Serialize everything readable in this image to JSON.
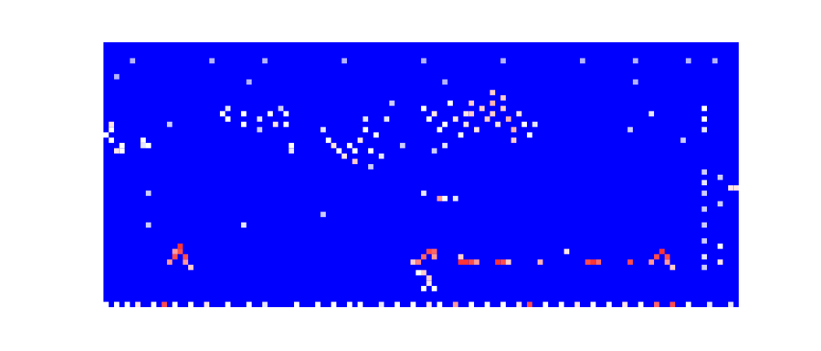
{
  "chart_data": {
    "type": "heatmap",
    "xlim": [
      0,
      120
    ],
    "ylim": [
      0,
      50
    ],
    "tick_labels": false,
    "grid": false,
    "colors": [
      "#0000ff",
      "#ffffff",
      "#ff0000"
    ],
    "color_range": [
      0,
      1
    ],
    "cells": [
      [
        0,
        32,
        0.5
      ],
      [
        1,
        34,
        0.55
      ],
      [
        1,
        33,
        0.5
      ],
      [
        1,
        31,
        0.5
      ],
      [
        2,
        29,
        0.55
      ],
      [
        3,
        30,
        0.5
      ],
      [
        3,
        29,
        0.5
      ],
      [
        7,
        31,
        0.5
      ],
      [
        7,
        30,
        0.45
      ],
      [
        8,
        30,
        0.5
      ],
      [
        12,
        34,
        0.4
      ],
      [
        22,
        36,
        0.5
      ],
      [
        23,
        37,
        0.45
      ],
      [
        23,
        35,
        0.5
      ],
      [
        26,
        36,
        0.5
      ],
      [
        26,
        34,
        0.5
      ],
      [
        29,
        35,
        0.45
      ],
      [
        29,
        33,
        0.4
      ],
      [
        31,
        36,
        0.5
      ],
      [
        32,
        34,
        0.55
      ],
      [
        33,
        37,
        0.4
      ],
      [
        34,
        36,
        0.5
      ],
      [
        34,
        34,
        0.5
      ],
      [
        35,
        30,
        0.5
      ],
      [
        35,
        29,
        0.45
      ],
      [
        41,
        33,
        0.45
      ],
      [
        42,
        31,
        0.5
      ],
      [
        43,
        30,
        0.55
      ],
      [
        44,
        29,
        0.5
      ],
      [
        45,
        28,
        0.55
      ],
      [
        46,
        30,
        0.5
      ],
      [
        47,
        27,
        0.6
      ],
      [
        47,
        29,
        0.5
      ],
      [
        48,
        31,
        0.55
      ],
      [
        49,
        33,
        0.5
      ],
      [
        49,
        35,
        0.45
      ],
      [
        50,
        29,
        0.5
      ],
      [
        50,
        26,
        0.4
      ],
      [
        51,
        32,
        0.5
      ],
      [
        52,
        28,
        0.45
      ],
      [
        53,
        35,
        0.45
      ],
      [
        54,
        38,
        0.4
      ],
      [
        56,
        30,
        0.4
      ],
      [
        60,
        37,
        0.5
      ],
      [
        61,
        35,
        0.5
      ],
      [
        62,
        36,
        0.55
      ],
      [
        63,
        33,
        0.5
      ],
      [
        64,
        34,
        0.5
      ],
      [
        65,
        38,
        0.5
      ],
      [
        66,
        35,
        0.55
      ],
      [
        67,
        32,
        0.5
      ],
      [
        68,
        36,
        0.55
      ],
      [
        68,
        34,
        0.55
      ],
      [
        69,
        38,
        0.6
      ],
      [
        69,
        36,
        0.6
      ],
      [
        70,
        33,
        0.55
      ],
      [
        71,
        37,
        0.6
      ],
      [
        72,
        35,
        0.6
      ],
      [
        73,
        40,
        0.6
      ],
      [
        73,
        38,
        0.65
      ],
      [
        73,
        36,
        0.6
      ],
      [
        74,
        34,
        0.55
      ],
      [
        75,
        39,
        0.6
      ],
      [
        75,
        37,
        0.6
      ],
      [
        76,
        35,
        0.65
      ],
      [
        77,
        33,
        0.65
      ],
      [
        77,
        31,
        0.6
      ],
      [
        78,
        36,
        0.55
      ],
      [
        79,
        34,
        0.5
      ],
      [
        80,
        32,
        0.5
      ],
      [
        81,
        34,
        0.45
      ],
      [
        64,
        30,
        0.45
      ],
      [
        62,
        29,
        0.4
      ],
      [
        99,
        33,
        0.4
      ],
      [
        103,
        36,
        0.45
      ],
      [
        109,
        31,
        0.4
      ],
      [
        113,
        37,
        0.5
      ],
      [
        113,
        35,
        0.5
      ],
      [
        113,
        33,
        0.45
      ],
      [
        113,
        25,
        0.4
      ],
      [
        113,
        23,
        0.45
      ],
      [
        113,
        21,
        0.4
      ],
      [
        113,
        18,
        0.4
      ],
      [
        113,
        15,
        0.4
      ],
      [
        113,
        12,
        0.4
      ],
      [
        113,
        9,
        0.45
      ],
      [
        113,
        7,
        0.4
      ],
      [
        116,
        24,
        0.4
      ],
      [
        116,
        19,
        0.4
      ],
      [
        116,
        11,
        0.5
      ],
      [
        116,
        8,
        0.55
      ],
      [
        118,
        22,
        0.55
      ],
      [
        119,
        22,
        0.55
      ],
      [
        8,
        21,
        0.4
      ],
      [
        60,
        21,
        0.45
      ],
      [
        63,
        20,
        0.7
      ],
      [
        64,
        20,
        0.5
      ],
      [
        66,
        20,
        0.45
      ],
      [
        8,
        15,
        0.4
      ],
      [
        26,
        15,
        0.45
      ],
      [
        41,
        17,
        0.4
      ],
      [
        5,
        46,
        0.35
      ],
      [
        20,
        46,
        0.35
      ],
      [
        30,
        46,
        0.35
      ],
      [
        45,
        46,
        0.35
      ],
      [
        60,
        46,
        0.35
      ],
      [
        75,
        46,
        0.35
      ],
      [
        90,
        46,
        0.35
      ],
      [
        100,
        46,
        0.35
      ],
      [
        110,
        46,
        0.35
      ],
      [
        115,
        46,
        0.35
      ],
      [
        2,
        43,
        0.35
      ],
      [
        27,
        42,
        0.35
      ],
      [
        64,
        42,
        0.35
      ],
      [
        100,
        42,
        0.35
      ],
      [
        12,
        8,
        0.7
      ],
      [
        13,
        9,
        0.85
      ],
      [
        13,
        10,
        0.7
      ],
      [
        14,
        11,
        0.9
      ],
      [
        14,
        10,
        0.85
      ],
      [
        15,
        9,
        0.85
      ],
      [
        15,
        8,
        0.7
      ],
      [
        16,
        7,
        0.6
      ],
      [
        58,
        8,
        0.6
      ],
      [
        59,
        8,
        0.75
      ],
      [
        60,
        9,
        0.8
      ],
      [
        61,
        10,
        0.85
      ],
      [
        62,
        10,
        0.8
      ],
      [
        62,
        9,
        0.7
      ],
      [
        60,
        6,
        0.6
      ],
      [
        61,
        5,
        0.6
      ],
      [
        61,
        4,
        0.55
      ],
      [
        60,
        3,
        0.5
      ],
      [
        62,
        3,
        0.5
      ],
      [
        59,
        6,
        0.5
      ],
      [
        67,
        8,
        0.9
      ],
      [
        68,
        8,
        0.9
      ],
      [
        69,
        8,
        0.85
      ],
      [
        67,
        9,
        0.6
      ],
      [
        70,
        8,
        0.7
      ],
      [
        74,
        8,
        0.9
      ],
      [
        75,
        8,
        0.85
      ],
      [
        76,
        8,
        0.6
      ],
      [
        82,
        8,
        0.65
      ],
      [
        87,
        10,
        0.55
      ],
      [
        91,
        8,
        0.85
      ],
      [
        92,
        8,
        0.9
      ],
      [
        93,
        8,
        0.8
      ],
      [
        99,
        8,
        0.85
      ],
      [
        103,
        8,
        0.7
      ],
      [
        104,
        9,
        0.85
      ],
      [
        105,
        10,
        0.9
      ],
      [
        106,
        9,
        0.85
      ],
      [
        106,
        8,
        0.7
      ],
      [
        107,
        7,
        0.6
      ],
      [
        0,
        0,
        0.5
      ],
      [
        2,
        0,
        0.5
      ],
      [
        4,
        0,
        0.5
      ],
      [
        6,
        0,
        0.55
      ],
      [
        9,
        0,
        0.5
      ],
      [
        11,
        0,
        0.85
      ],
      [
        13,
        0,
        0.5
      ],
      [
        16,
        0,
        0.5
      ],
      [
        19,
        0,
        0.55
      ],
      [
        23,
        0,
        0.5
      ],
      [
        27,
        0,
        0.5
      ],
      [
        30,
        0,
        0.45
      ],
      [
        36,
        0,
        0.5
      ],
      [
        40,
        0,
        0.5
      ],
      [
        43,
        0,
        0.5
      ],
      [
        46,
        0,
        0.5
      ],
      [
        48,
        0,
        0.5
      ],
      [
        52,
        0,
        0.45
      ],
      [
        55,
        0,
        0.5
      ],
      [
        58,
        0,
        0.5
      ],
      [
        61,
        0,
        0.55
      ],
      [
        63,
        0,
        0.5
      ],
      [
        66,
        0,
        0.7
      ],
      [
        69,
        0,
        0.5
      ],
      [
        72,
        0,
        0.5
      ],
      [
        75,
        0,
        0.5
      ],
      [
        78,
        0,
        0.55
      ],
      [
        80,
        0,
        0.85
      ],
      [
        83,
        0,
        0.5
      ],
      [
        86,
        0,
        0.5
      ],
      [
        89,
        0,
        0.55
      ],
      [
        92,
        0,
        0.5
      ],
      [
        95,
        0,
        0.5
      ],
      [
        98,
        0,
        0.55
      ],
      [
        101,
        0,
        0.5
      ],
      [
        104,
        0,
        0.8
      ],
      [
        107,
        0,
        0.85
      ],
      [
        110,
        0,
        0.5
      ],
      [
        114,
        0,
        0.45
      ],
      [
        118,
        0,
        0.45
      ]
    ]
  }
}
